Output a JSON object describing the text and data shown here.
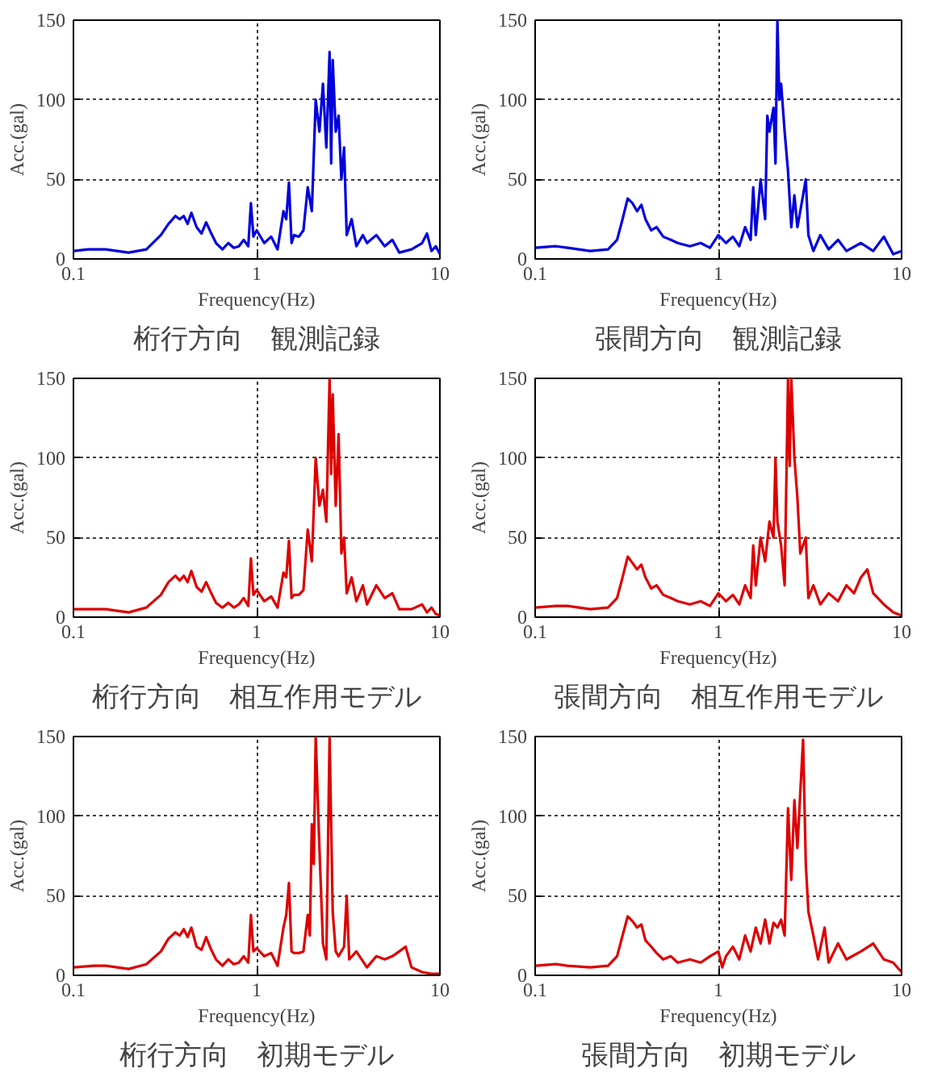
{
  "chart_data": [
    {
      "type": "line",
      "title": "桁行方向　観測記録",
      "xlabel": "Frequency(Hz)",
      "ylabel": "Acc.(gal)",
      "color": "#0000dd",
      "log": "x",
      "grid": true,
      "xlim": [
        0.1,
        10
      ],
      "ylim": [
        0,
        150
      ],
      "xticks": [
        0.1,
        1,
        10
      ],
      "yticks": [
        0,
        50,
        100,
        150
      ],
      "x": [
        0.1,
        0.12,
        0.15,
        0.2,
        0.25,
        0.3,
        0.33,
        0.36,
        0.38,
        0.4,
        0.42,
        0.44,
        0.47,
        0.5,
        0.53,
        0.56,
        0.6,
        0.65,
        0.7,
        0.75,
        0.8,
        0.85,
        0.9,
        0.93,
        0.96,
        1.0,
        1.1,
        1.2,
        1.3,
        1.4,
        1.45,
        1.5,
        1.55,
        1.6,
        1.7,
        1.8,
        1.9,
        2.0,
        2.1,
        2.2,
        2.3,
        2.4,
        2.5,
        2.55,
        2.6,
        2.7,
        2.8,
        2.9,
        3.0,
        3.1,
        3.3,
        3.5,
        3.8,
        4,
        4.5,
        5,
        5.5,
        6,
        7,
        8,
        8.5,
        9,
        9.5,
        10
      ],
      "values": [
        5,
        6,
        6,
        4,
        6,
        15,
        22,
        27,
        25,
        27,
        22,
        29,
        20,
        16,
        23,
        17,
        10,
        6,
        10,
        7,
        8,
        12,
        8,
        35,
        14,
        18,
        10,
        14,
        6,
        30,
        25,
        48,
        10,
        15,
        14,
        18,
        45,
        30,
        100,
        80,
        110,
        70,
        130,
        60,
        125,
        80,
        90,
        50,
        70,
        15,
        25,
        8,
        15,
        10,
        15,
        8,
        12,
        4,
        6,
        10,
        16,
        5,
        8,
        3
      ]
    },
    {
      "type": "line",
      "title": "張間方向　観測記録",
      "xlabel": "Frequency(Hz)",
      "ylabel": "Acc.(gal)",
      "color": "#0000dd",
      "log": "x",
      "grid": true,
      "xlim": [
        0.1,
        10
      ],
      "ylim": [
        0,
        150
      ],
      "xticks": [
        0.1,
        1,
        10
      ],
      "yticks": [
        0,
        50,
        100,
        150
      ],
      "x": [
        0.1,
        0.13,
        0.15,
        0.2,
        0.25,
        0.28,
        0.3,
        0.32,
        0.34,
        0.36,
        0.38,
        0.4,
        0.43,
        0.46,
        0.5,
        0.55,
        0.6,
        0.7,
        0.8,
        0.9,
        1.0,
        1.1,
        1.2,
        1.3,
        1.4,
        1.5,
        1.55,
        1.6,
        1.7,
        1.8,
        1.85,
        1.9,
        2.0,
        2.05,
        2.1,
        2.15,
        2.2,
        2.3,
        2.4,
        2.5,
        2.6,
        2.7,
        2.8,
        3.0,
        3.1,
        3.3,
        3.6,
        4,
        4.5,
        5,
        6,
        7,
        8,
        9,
        10
      ],
      "values": [
        7,
        8,
        7,
        5,
        6,
        12,
        25,
        38,
        35,
        30,
        34,
        25,
        18,
        20,
        14,
        12,
        10,
        8,
        10,
        7,
        15,
        10,
        14,
        8,
        20,
        12,
        45,
        15,
        50,
        25,
        90,
        80,
        95,
        60,
        150,
        100,
        110,
        80,
        55,
        20,
        40,
        20,
        30,
        50,
        15,
        5,
        15,
        6,
        12,
        5,
        10,
        5,
        14,
        3,
        5
      ]
    },
    {
      "type": "line",
      "title": "桁行方向　相互作用モデル",
      "xlabel": "Frequency(Hz)",
      "ylabel": "Acc.(gal)",
      "color": "#dd0000",
      "log": "x",
      "grid": true,
      "xlim": [
        0.1,
        10
      ],
      "ylim": [
        0,
        150
      ],
      "xticks": [
        0.1,
        1,
        10
      ],
      "yticks": [
        0,
        50,
        100,
        150
      ],
      "x": [
        0.1,
        0.12,
        0.15,
        0.2,
        0.25,
        0.3,
        0.33,
        0.36,
        0.38,
        0.4,
        0.42,
        0.44,
        0.47,
        0.5,
        0.53,
        0.56,
        0.6,
        0.65,
        0.7,
        0.75,
        0.8,
        0.85,
        0.9,
        0.93,
        0.96,
        1.0,
        1.1,
        1.2,
        1.3,
        1.4,
        1.45,
        1.5,
        1.55,
        1.6,
        1.7,
        1.8,
        1.9,
        2.0,
        2.1,
        2.2,
        2.3,
        2.4,
        2.5,
        2.55,
        2.6,
        2.7,
        2.8,
        2.9,
        3.0,
        3.1,
        3.3,
        3.5,
        3.8,
        4,
        4.5,
        5,
        5.5,
        6,
        7,
        8,
        8.5,
        9,
        9.5,
        10
      ],
      "values": [
        5,
        5,
        5,
        3,
        6,
        14,
        22,
        26,
        23,
        26,
        22,
        29,
        19,
        16,
        22,
        16,
        9,
        6,
        9,
        6,
        8,
        12,
        7,
        37,
        14,
        17,
        10,
        13,
        6,
        28,
        25,
        48,
        12,
        14,
        14,
        17,
        55,
        35,
        100,
        70,
        80,
        60,
        150,
        90,
        140,
        70,
        115,
        40,
        50,
        15,
        25,
        10,
        20,
        8,
        20,
        12,
        15,
        5,
        5,
        8,
        3,
        6,
        2,
        1
      ]
    },
    {
      "type": "line",
      "title": "張間方向　相互作用モデル",
      "xlabel": "Frequency(Hz)",
      "ylabel": "Acc.(gal)",
      "color": "#dd0000",
      "log": "x",
      "grid": true,
      "xlim": [
        0.1,
        10
      ],
      "ylim": [
        0,
        150
      ],
      "xticks": [
        0.1,
        1,
        10
      ],
      "yticks": [
        0,
        50,
        100,
        150
      ],
      "x": [
        0.1,
        0.13,
        0.15,
        0.2,
        0.25,
        0.28,
        0.3,
        0.32,
        0.34,
        0.36,
        0.38,
        0.4,
        0.43,
        0.46,
        0.5,
        0.55,
        0.6,
        0.7,
        0.8,
        0.9,
        1.0,
        1.1,
        1.2,
        1.3,
        1.4,
        1.5,
        1.55,
        1.6,
        1.7,
        1.8,
        1.9,
        2.0,
        2.05,
        2.1,
        2.2,
        2.3,
        2.4,
        2.45,
        2.5,
        2.6,
        2.7,
        2.8,
        3.0,
        3.1,
        3.3,
        3.6,
        4,
        4.5,
        5,
        5.5,
        6,
        6.5,
        7,
        8,
        9,
        10
      ],
      "values": [
        6,
        7,
        7,
        5,
        6,
        12,
        25,
        38,
        34,
        30,
        33,
        25,
        18,
        20,
        14,
        12,
        10,
        8,
        10,
        7,
        15,
        10,
        14,
        8,
        20,
        12,
        45,
        20,
        50,
        35,
        60,
        50,
        100,
        60,
        45,
        20,
        150,
        95,
        150,
        100,
        75,
        40,
        50,
        12,
        20,
        8,
        15,
        10,
        20,
        15,
        25,
        30,
        15,
        8,
        3,
        1
      ]
    },
    {
      "type": "line",
      "title": "桁行方向　初期モデル",
      "xlabel": "Frequency(Hz)",
      "ylabel": "Acc.(gal)",
      "color": "#dd0000",
      "log": "x",
      "grid": true,
      "xlim": [
        0.1,
        10
      ],
      "ylim": [
        0,
        150
      ],
      "xticks": [
        0.1,
        1,
        10
      ],
      "yticks": [
        0,
        50,
        100,
        150
      ],
      "x": [
        0.1,
        0.13,
        0.15,
        0.2,
        0.25,
        0.3,
        0.33,
        0.36,
        0.38,
        0.4,
        0.42,
        0.44,
        0.47,
        0.5,
        0.53,
        0.56,
        0.6,
        0.65,
        0.7,
        0.75,
        0.8,
        0.85,
        0.9,
        0.93,
        0.96,
        1.0,
        1.1,
        1.2,
        1.3,
        1.4,
        1.45,
        1.5,
        1.55,
        1.6,
        1.7,
        1.8,
        1.9,
        1.95,
        2.0,
        2.05,
        2.1,
        2.2,
        2.3,
        2.4,
        2.5,
        2.6,
        2.7,
        2.8,
        3.0,
        3.1,
        3.2,
        3.5,
        4,
        4.5,
        5,
        5.5,
        6,
        6.5,
        7,
        8,
        9,
        10
      ],
      "values": [
        5,
        6,
        6,
        4,
        7,
        15,
        23,
        27,
        25,
        29,
        24,
        30,
        18,
        16,
        24,
        17,
        10,
        6,
        10,
        7,
        8,
        12,
        8,
        38,
        15,
        17,
        12,
        14,
        6,
        30,
        38,
        58,
        15,
        14,
        14,
        15,
        38,
        25,
        95,
        70,
        150,
        80,
        20,
        10,
        150,
        40,
        15,
        12,
        18,
        50,
        10,
        15,
        5,
        12,
        10,
        12,
        15,
        18,
        5,
        2,
        1,
        1
      ]
    },
    {
      "type": "line",
      "title": "張間方向　初期モデル",
      "xlabel": "Frequency(Hz)",
      "ylabel": "Acc.(gal)",
      "color": "#dd0000",
      "log": "x",
      "grid": true,
      "xlim": [
        0.1,
        10
      ],
      "ylim": [
        0,
        150
      ],
      "xticks": [
        0.1,
        1,
        10
      ],
      "yticks": [
        0,
        50,
        100,
        150
      ],
      "x": [
        0.1,
        0.13,
        0.15,
        0.2,
        0.25,
        0.28,
        0.3,
        0.32,
        0.34,
        0.36,
        0.38,
        0.4,
        0.43,
        0.46,
        0.5,
        0.55,
        0.6,
        0.7,
        0.8,
        0.9,
        1.0,
        1.05,
        1.1,
        1.2,
        1.3,
        1.4,
        1.5,
        1.6,
        1.7,
        1.8,
        1.9,
        2.0,
        2.1,
        2.2,
        2.3,
        2.4,
        2.5,
        2.6,
        2.7,
        2.8,
        2.9,
        3.0,
        3.1,
        3.3,
        3.5,
        3.8,
        4,
        4.5,
        5,
        6,
        7,
        8,
        9,
        10
      ],
      "values": [
        6,
        7,
        6,
        5,
        6,
        12,
        25,
        37,
        34,
        30,
        32,
        22,
        18,
        14,
        10,
        12,
        8,
        10,
        8,
        12,
        15,
        5,
        12,
        18,
        10,
        25,
        15,
        30,
        20,
        35,
        20,
        33,
        30,
        35,
        25,
        105,
        60,
        110,
        80,
        115,
        148,
        70,
        40,
        25,
        10,
        30,
        8,
        20,
        10,
        15,
        20,
        10,
        8,
        2
      ]
    }
  ]
}
